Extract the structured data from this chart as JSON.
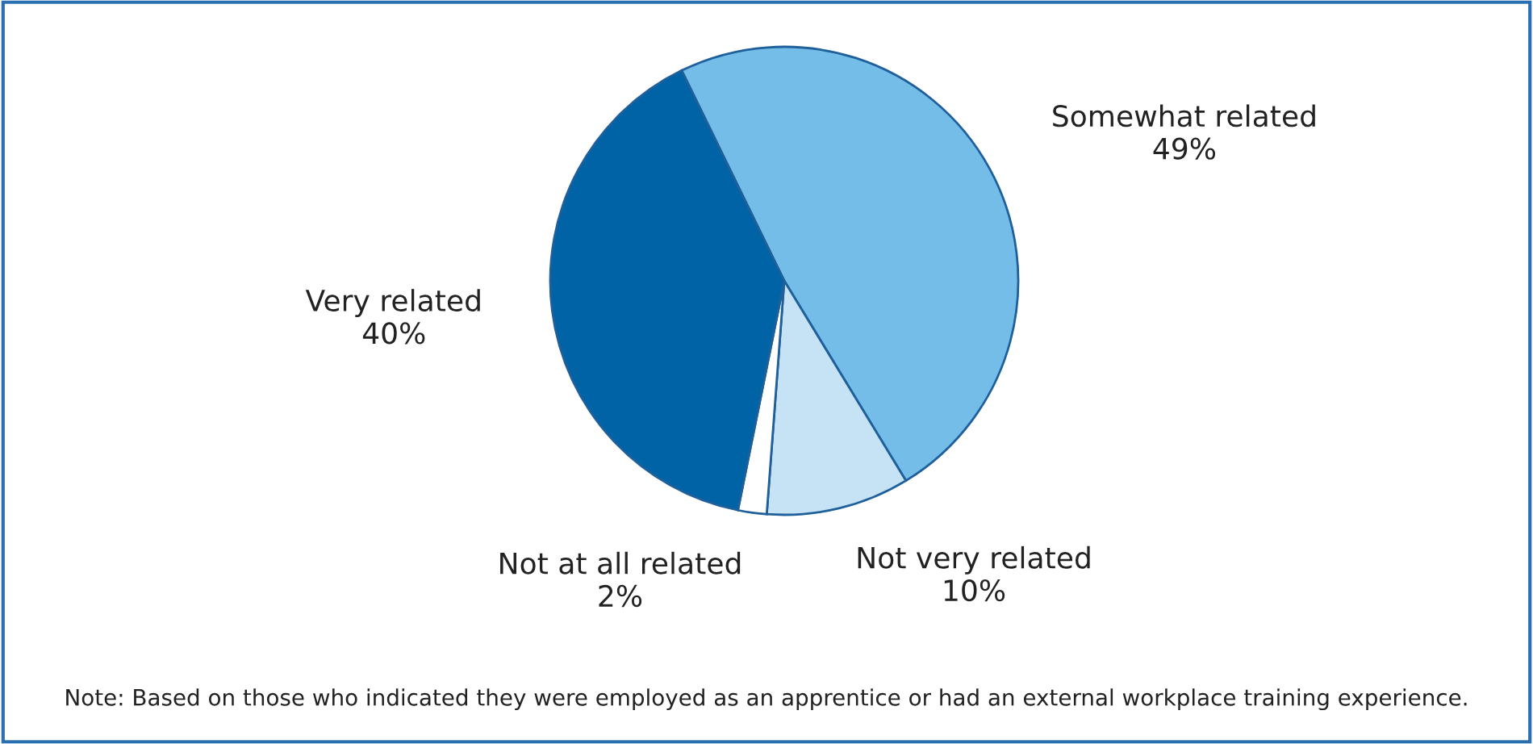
{
  "chart_data": {
    "type": "pie",
    "categories": [
      "Somewhat related",
      "Not very related",
      "Not at all related",
      "Very related"
    ],
    "values": [
      49,
      10,
      2,
      40
    ],
    "value_labels": [
      "49%",
      "10%",
      "2%",
      "40%"
    ],
    "colors": [
      "#74bde8",
      "#c6e2f5",
      "#ffffff",
      "#0063a6"
    ],
    "annotations": [
      "Note: Based on those who indicated they were employed as an apprentice or had an external workplace training experience."
    ]
  }
}
